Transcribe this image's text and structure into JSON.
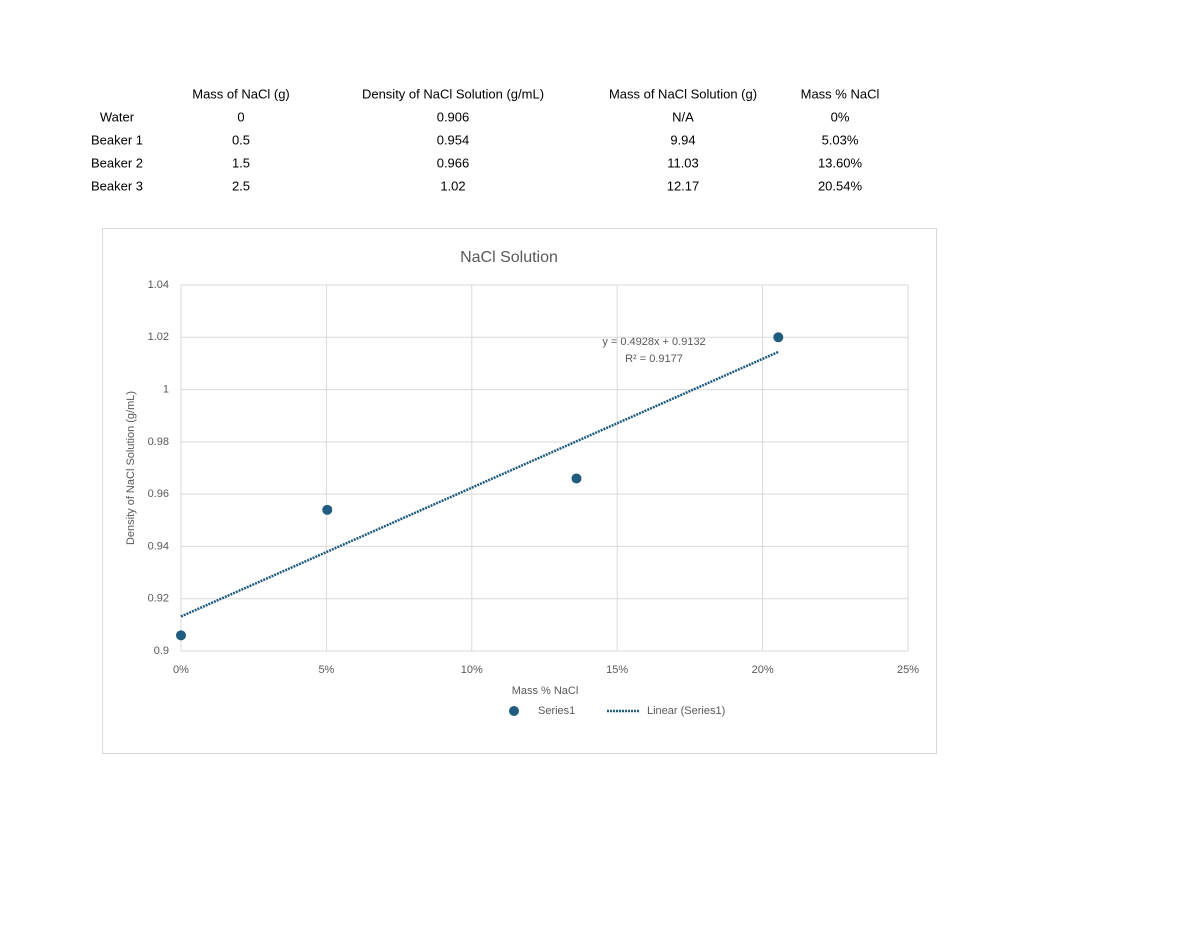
{
  "table": {
    "columns": [
      "Mass of NaCl (g)",
      "Density of NaCl Solution (g/mL)",
      "Mass of NaCl Solution (g)",
      "Mass % NaCl"
    ],
    "rows": [
      [
        "Water",
        "0",
        "0.906",
        "N/A",
        "0%"
      ],
      [
        "Beaker 1",
        "0.5",
        "0.954",
        "9.94",
        "5.03%"
      ],
      [
        "Beaker 2",
        "1.5",
        "0.966",
        "11.03",
        "13.60%"
      ],
      [
        "Beaker 3",
        "2.5",
        "1.02",
        "12.17",
        "20.54%"
      ]
    ]
  },
  "chart_data": {
    "type": "scatter",
    "title": "NaCl Solution",
    "x_label": "Mass % NaCl",
    "y_label": "Density of NaCl Solution (g/mL)",
    "series": [
      {
        "name": "Series1",
        "color": "#1f5c7e",
        "x": [
          0,
          5.03,
          13.6,
          20.54
        ],
        "values": [
          0.906,
          0.954,
          0.966,
          1.02
        ]
      },
      {
        "name": "Linear (Series1)",
        "color": "#1f5c7e",
        "style": "dotted",
        "x": [
          0,
          20.54
        ],
        "values": [
          0.9132,
          1.0144
        ]
      }
    ],
    "annotations": [
      "y = 0.4928x + 0.9132",
      "R² = 0.9177"
    ],
    "xlim": [
      0,
      25
    ],
    "xticks": [
      {
        "value": 0,
        "label": "0%"
      },
      {
        "value": 5,
        "label": "5%"
      },
      {
        "value": 10,
        "label": "10%"
      },
      {
        "value": 15,
        "label": "15%"
      },
      {
        "value": 20,
        "label": "20%"
      },
      {
        "value": 25,
        "label": "25%"
      }
    ],
    "ylim": [
      0.9,
      1.04
    ],
    "yticks": [
      0.9,
      0.92,
      0.94,
      0.96,
      0.98,
      1,
      1.02,
      1.04
    ],
    "grid": true,
    "legend": "bottom"
  }
}
